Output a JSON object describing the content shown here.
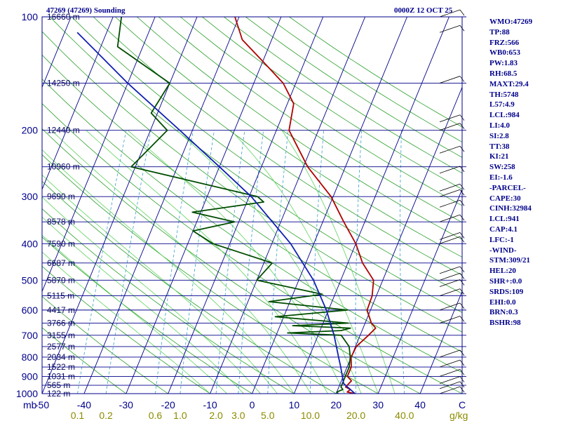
{
  "header": {
    "station": "47269 (47269) Sounding",
    "datetime": "0000Z 12 OCT 25"
  },
  "indices": [
    "WMO:47269",
    "TP:88",
    "FRZ:566",
    "WB0:653",
    "PW:1.83",
    "RH:68.5",
    "MAXT:29.4",
    "TH:5748",
    "L57:4.9",
    "LCL:984",
    "LI:4.0",
    "SI:2.8",
    "TT:38",
    "KI:21",
    "SW:258",
    "EI:-1.6",
    "-PARCEL-",
    "CAPE:30",
    "CINH:32984",
    "LCL:941",
    "CAP:4.1",
    "LFC:-1",
    "-WIND-",
    "STM:309/21",
    "HEL:20",
    "SHR+:0.0",
    "SRDS:109",
    "EHI:0.0",
    "BRN:0.3",
    "BSHR:98"
  ],
  "chart_data": {
    "type": "line",
    "title": "47269 (47269) Sounding",
    "diagram": "skew-T log-P",
    "xlabel": "C",
    "ylabel": "mb",
    "mixing_ratio_unit": "g/kg",
    "xlim": [
      -50,
      50
    ],
    "ylim": [
      1000,
      100
    ],
    "temperature_ticks": [
      "-50",
      "-40",
      "-30",
      "-20",
      "-10",
      "0",
      "10",
      "20",
      "30",
      "40",
      "C"
    ],
    "temperature_tick_values": [
      -50,
      -40,
      -30,
      -20,
      -10,
      0,
      10,
      20,
      30,
      40
    ],
    "pressure_ticks": [
      {
        "p": 100,
        "label": "100"
      },
      {
        "p": 200,
        "label": "200"
      },
      {
        "p": 300,
        "label": "300"
      },
      {
        "p": 400,
        "label": "400"
      },
      {
        "p": 500,
        "label": "500"
      },
      {
        "p": 600,
        "label": "600"
      },
      {
        "p": 700,
        "label": "700"
      },
      {
        "p": 800,
        "label": "800"
      },
      {
        "p": 900,
        "label": "900"
      },
      {
        "p": 1000,
        "label": "1000"
      }
    ],
    "mixing_ratio_labels": [
      {
        "w": 0.1,
        "label": "0.1"
      },
      {
        "w": 0.2,
        "label": "0.2"
      },
      {
        "w": 0.6,
        "label": "0.6"
      },
      {
        "w": 1.0,
        "label": "1.0"
      },
      {
        "w": 2.0,
        "label": "2.0"
      },
      {
        "w": 3.0,
        "label": "3.0"
      },
      {
        "w": 5.0,
        "label": "5.0"
      },
      {
        "w": 10.0,
        "label": "10.0"
      },
      {
        "w": 20.0,
        "label": "20.0"
      },
      {
        "w": 40.0,
        "label": "40.0"
      }
    ],
    "heights": [
      {
        "p": 100,
        "label": "16660 m"
      },
      {
        "p": 150,
        "label": "14250 m"
      },
      {
        "p": 200,
        "label": "12440 m"
      },
      {
        "p": 250,
        "label": "10960 m"
      },
      {
        "p": 300,
        "label": "9690 m"
      },
      {
        "p": 350,
        "label": "8578 m"
      },
      {
        "p": 400,
        "label": "7590 m"
      },
      {
        "p": 450,
        "label": "6687 m"
      },
      {
        "p": 500,
        "label": "5870 m"
      },
      {
        "p": 550,
        "label": "5115 m"
      },
      {
        "p": 600,
        "label": "4417 m"
      },
      {
        "p": 650,
        "label": "3766 m"
      },
      {
        "p": 700,
        "label": "3155 m"
      },
      {
        "p": 750,
        "label": "2577 m"
      },
      {
        "p": 800,
        "label": "2034 m"
      },
      {
        "p": 850,
        "label": "1522 m"
      },
      {
        "p": 900,
        "label": "1031 m"
      },
      {
        "p": 950,
        "label": "565 m"
      },
      {
        "p": 1000,
        "label": "122 m"
      }
    ],
    "series": [
      {
        "name": "Temperature",
        "color": "#b00000",
        "points": [
          [
            1000,
            24.5
          ],
          [
            990,
            22.5
          ],
          [
            975,
            23.0
          ],
          [
            960,
            21.6
          ],
          [
            925,
            22.4
          ],
          [
            900,
            21.0
          ],
          [
            850,
            21.0
          ],
          [
            800,
            20.0
          ],
          [
            750,
            20.2
          ],
          [
            700,
            22.0
          ],
          [
            670,
            23.0
          ],
          [
            650,
            21.5
          ],
          [
            600,
            19.2
          ],
          [
            550,
            19.0
          ],
          [
            500,
            17.8
          ],
          [
            450,
            13.5
          ],
          [
            400,
            10.0
          ],
          [
            350,
            5.0
          ],
          [
            300,
            -0.5
          ],
          [
            250,
            -9.0
          ],
          [
            200,
            -17.0
          ],
          [
            170,
            -18.5
          ],
          [
            150,
            -23.0
          ],
          [
            130,
            -30.5
          ],
          [
            115,
            -37.0
          ],
          [
            100,
            -41.0
          ]
        ]
      },
      {
        "name": "Dewpoint",
        "color": "#004d00",
        "points": [
          [
            1000,
            20.5
          ],
          [
            990,
            20.0
          ],
          [
            975,
            21.2
          ],
          [
            960,
            20.5
          ],
          [
            925,
            20.5
          ],
          [
            900,
            20.5
          ],
          [
            850,
            20.5
          ],
          [
            800,
            19.8
          ],
          [
            750,
            18.5
          ],
          [
            700,
            15.5
          ],
          [
            690,
            2.5
          ],
          [
            680,
            15.0
          ],
          [
            670,
            17.0
          ],
          [
            660,
            3.0
          ],
          [
            650,
            16.0
          ],
          [
            625,
            -2.0
          ],
          [
            600,
            14.5
          ],
          [
            570,
            -5.0
          ],
          [
            545,
            7.0
          ],
          [
            500,
            -10.0
          ],
          [
            450,
            -8.0
          ],
          [
            400,
            -24.0
          ],
          [
            370,
            -30.0
          ],
          [
            350,
            -21.0
          ],
          [
            330,
            -32.0
          ],
          [
            310,
            -16.0
          ],
          [
            300,
            -18.0
          ],
          [
            250,
            -51.0
          ],
          [
            200,
            -46.0
          ],
          [
            180,
            -51.5
          ],
          [
            150,
            -50.0
          ],
          [
            120,
            -66.0
          ],
          [
            100,
            -68.0
          ]
        ]
      },
      {
        "name": "Parcel",
        "color": "#1020b0",
        "points": [
          [
            1000,
            24.5
          ],
          [
            940,
            20.8
          ],
          [
            900,
            19.8
          ],
          [
            850,
            18.5
          ],
          [
            800,
            17.0
          ],
          [
            700,
            13.8
          ],
          [
            600,
            9.5
          ],
          [
            500,
            3.5
          ],
          [
            400,
            -5.5
          ],
          [
            300,
            -19.5
          ],
          [
            250,
            -30.0
          ],
          [
            200,
            -43.0
          ],
          [
            150,
            -60.0
          ],
          [
            110,
            -77.0
          ]
        ]
      }
    ]
  }
}
